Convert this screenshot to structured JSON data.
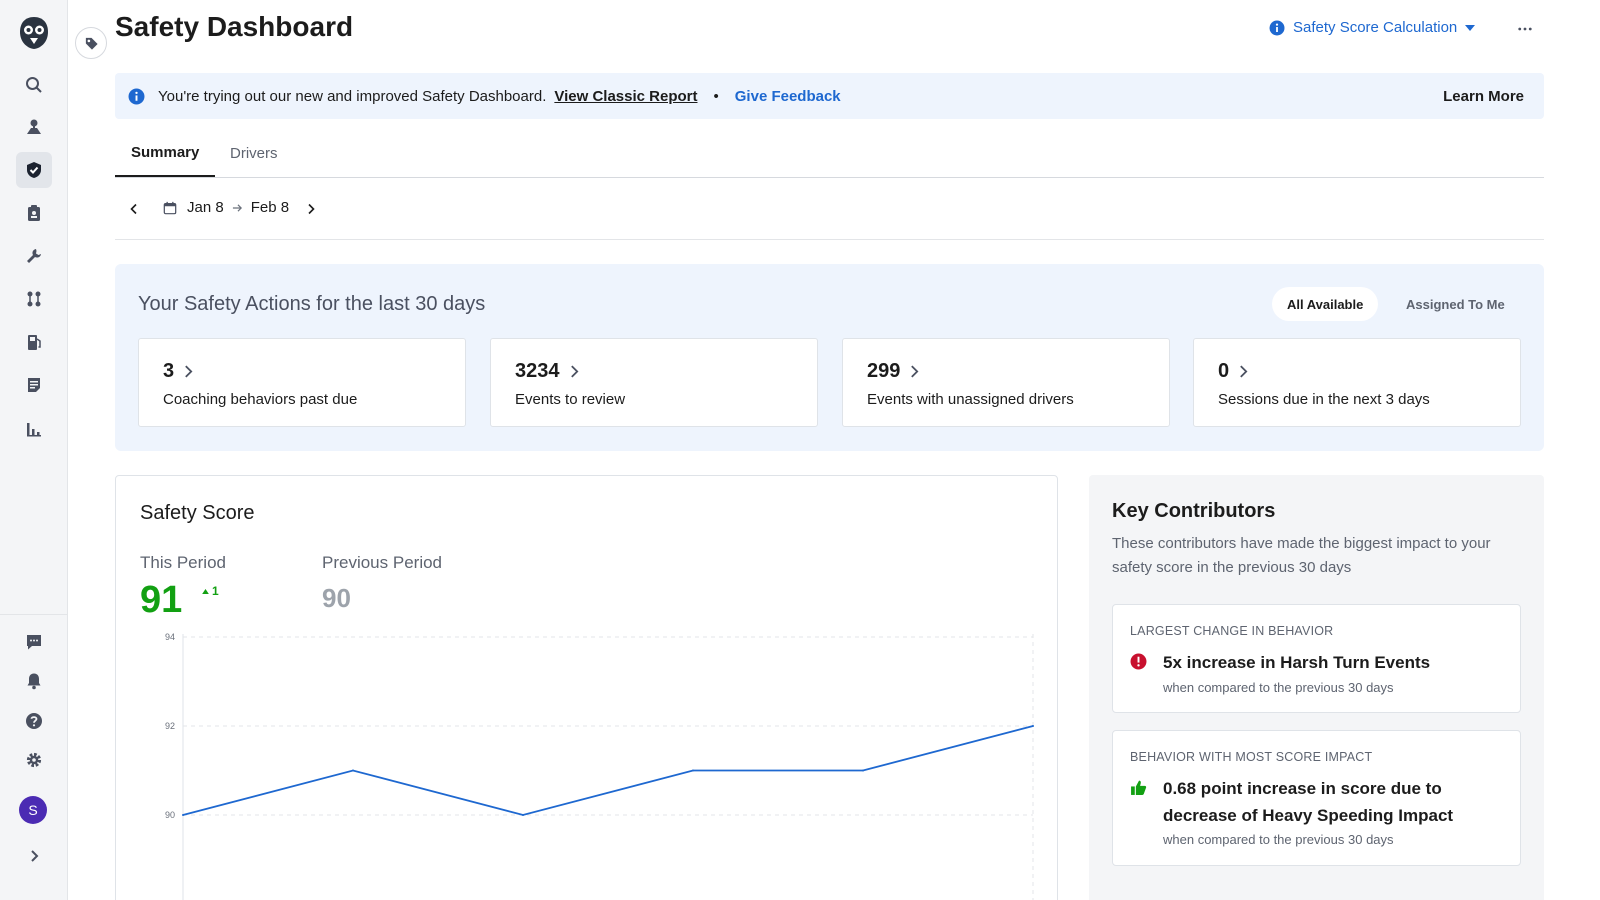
{
  "header": {
    "title": "Safety Dashboard",
    "score_calc_label": "Safety Score Calculation"
  },
  "banner": {
    "message": "You're trying out our new and improved Safety Dashboard.",
    "classic_link": "View Classic Report",
    "separator": "•",
    "feedback_link": "Give Feedback",
    "learn_more": "Learn More"
  },
  "tabs": [
    {
      "label": "Summary",
      "active": true
    },
    {
      "label": "Drivers",
      "active": false
    }
  ],
  "date_range": {
    "start": "Jan 8",
    "end": "Feb 8"
  },
  "safety_actions": {
    "title": "Your Safety Actions for the last 30 days",
    "filters": [
      {
        "label": "All Available",
        "selected": true
      },
      {
        "label": "Assigned To Me",
        "selected": false
      }
    ],
    "cards": [
      {
        "value": "3",
        "label": "Coaching behaviors past due"
      },
      {
        "value": "3234",
        "label": "Events to review"
      },
      {
        "value": "299",
        "label": "Events with unassigned drivers"
      },
      {
        "value": "0",
        "label": "Sessions due in the next 3 days"
      }
    ]
  },
  "safety_score": {
    "title": "Safety Score",
    "this_period_label": "This Period",
    "this_period_value": "91",
    "delta": "1",
    "previous_period_label": "Previous Period",
    "previous_period_value": "90"
  },
  "chart_data": {
    "type": "line",
    "x": [
      0,
      1,
      2,
      3,
      4,
      5
    ],
    "series": [
      {
        "values": [
          90,
          91,
          90,
          91,
          91,
          92
        ]
      }
    ],
    "yticks": [
      "94",
      "92",
      "90"
    ],
    "ylim": [
      88.5,
      94
    ],
    "grid": true,
    "color": "#1e68d0"
  },
  "key_contributors": {
    "title": "Key Contributors",
    "description": "These contributors have made the biggest impact to your safety score in the previous 30 days",
    "items": [
      {
        "caption": "LARGEST CHANGE IN BEHAVIOR",
        "icon": "alert-circle-icon",
        "headline": "5x increase in Harsh Turn Events",
        "sub": "when compared to the previous 30 days"
      },
      {
        "caption": "BEHAVIOR WITH MOST SCORE IMPACT",
        "icon": "thumbs-up-icon",
        "headline": "0.68 point increase in score due to decrease of Heavy Speeding Impact",
        "sub": "when compared to the previous 30 days"
      }
    ]
  },
  "sidebar": {
    "avatar_initial": "S",
    "items": [
      "search-icon",
      "map-pin-icon",
      "safety-shield-icon",
      "clipboard-icon",
      "wrench-icon",
      "routes-icon",
      "fuel-icon",
      "document-icon",
      "reports-icon"
    ],
    "bottom_items": [
      "chat-icon",
      "bell-icon",
      "help-icon",
      "gear-icon"
    ]
  },
  "colors": {
    "accent": "#1e68d0",
    "positive": "#12a012",
    "alert": "#c8102e",
    "banner_bg": "#eef4fd"
  }
}
